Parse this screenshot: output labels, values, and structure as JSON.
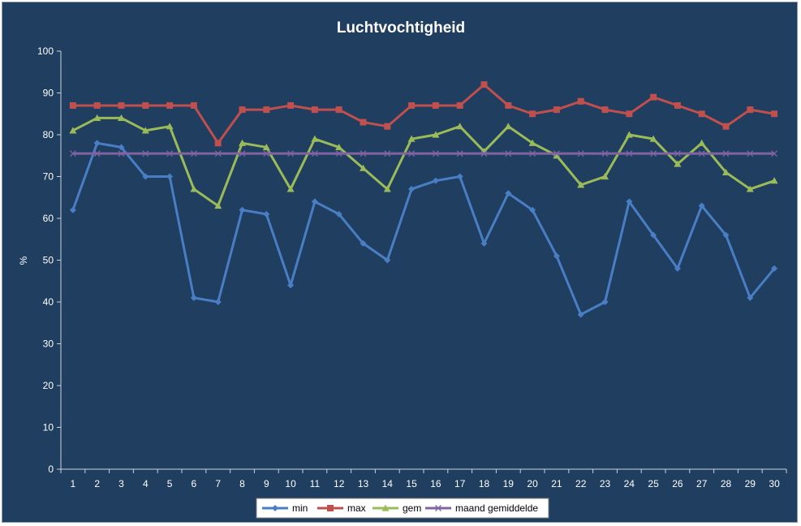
{
  "chart_data": {
    "type": "line",
    "title": "Luchtvochtigheid",
    "xlabel": "",
    "ylabel": "%",
    "ylim": [
      0,
      100
    ],
    "yticks": [
      0,
      10,
      20,
      30,
      40,
      50,
      60,
      70,
      80,
      90,
      100
    ],
    "grid": false,
    "legend": "bottom",
    "categories": [
      "1",
      "2",
      "3",
      "4",
      "5",
      "6",
      "7",
      "8",
      "9",
      "10",
      "11",
      "12",
      "13",
      "14",
      "15",
      "16",
      "17",
      "18",
      "19",
      "20",
      "21",
      "22",
      "23",
      "24",
      "25",
      "26",
      "27",
      "28",
      "29",
      "30"
    ],
    "series": [
      {
        "name": "min",
        "color": "#4a7ec4",
        "marker": "diamond",
        "values": [
          62,
          78,
          77,
          70,
          70,
          41,
          40,
          62,
          61,
          44,
          64,
          61,
          54,
          50,
          67,
          69,
          70,
          54,
          66,
          62,
          51,
          37,
          40,
          64,
          56,
          48,
          63,
          56,
          41,
          48
        ]
      },
      {
        "name": "max",
        "color": "#c0504d",
        "marker": "square",
        "values": [
          87,
          87,
          87,
          87,
          87,
          87,
          78,
          86,
          86,
          87,
          86,
          86,
          83,
          82,
          87,
          87,
          87,
          92,
          87,
          85,
          86,
          88,
          86,
          85,
          89,
          87,
          85,
          82,
          86,
          85
        ]
      },
      {
        "name": "gem",
        "color": "#9bbb59",
        "marker": "triangle",
        "values": [
          81,
          84,
          84,
          81,
          82,
          67,
          63,
          78,
          77,
          67,
          79,
          77,
          72,
          67,
          79,
          80,
          82,
          76,
          82,
          78,
          75,
          68,
          70,
          80,
          79,
          73,
          78,
          71,
          67,
          69
        ]
      },
      {
        "name": "maand gemiddelde",
        "color": "#8064a2",
        "marker": "x",
        "values": [
          75.5,
          75.5,
          75.5,
          75.5,
          75.5,
          75.5,
          75.5,
          75.5,
          75.5,
          75.5,
          75.5,
          75.5,
          75.5,
          75.5,
          75.5,
          75.5,
          75.5,
          75.5,
          75.5,
          75.5,
          75.5,
          75.5,
          75.5,
          75.5,
          75.5,
          75.5,
          75.5,
          75.5,
          75.5,
          75.5
        ]
      }
    ]
  }
}
